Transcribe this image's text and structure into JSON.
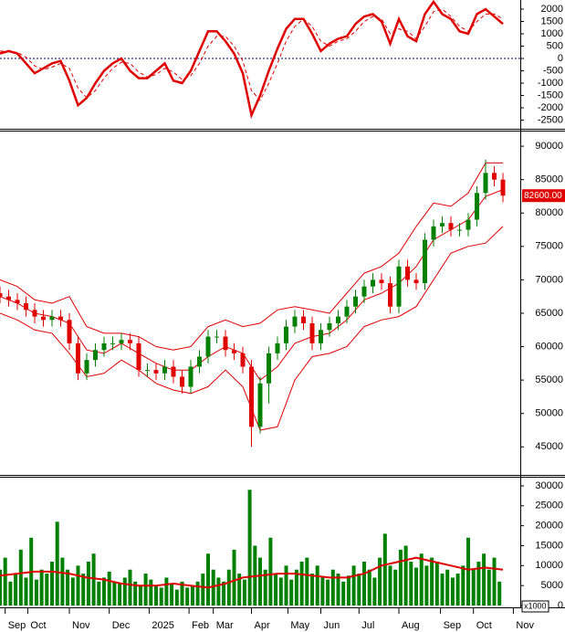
{
  "chart_data": [
    {
      "type": "line",
      "xlim": [
        0,
        300
      ],
      "ylim": [
        -2850,
        2370
      ],
      "yticks": [
        -2500,
        -2000,
        -1500,
        -1000,
        -500,
        0,
        500,
        1000,
        1500,
        2000
      ],
      "reference_line": {
        "value": 0,
        "color": "#000080"
      },
      "x": [
        0,
        5,
        10,
        15,
        20,
        25,
        30,
        35,
        40,
        45,
        50,
        55,
        60,
        65,
        70,
        75,
        80,
        85,
        90,
        95,
        100,
        105,
        110,
        115,
        120,
        125,
        130,
        135,
        140,
        145,
        150,
        155,
        160,
        165,
        170,
        175,
        180,
        185,
        190,
        195,
        200,
        205,
        210,
        215,
        220,
        225,
        230,
        235,
        240,
        245,
        250,
        255,
        260,
        265,
        270,
        275,
        280,
        285,
        290
      ],
      "series": [
        {
          "color": "#e00000",
          "dash": false,
          "values": [
            200,
            300,
            200,
            -200,
            -600,
            -400,
            -200,
            -100,
            -900,
            -1900,
            -1600,
            -1000,
            -500,
            -200,
            0,
            -500,
            -800,
            -800,
            -500,
            -200,
            -900,
            -1000,
            -500,
            300,
            1100,
            1100,
            700,
            200,
            -600,
            -2300,
            -1500,
            -500,
            400,
            1200,
            1600,
            1600,
            1000,
            300,
            600,
            800,
            900,
            1400,
            1700,
            1800,
            1500,
            600,
            1600,
            900,
            700,
            1800,
            2300,
            1800,
            1600,
            1100,
            1000,
            1800,
            2000,
            1700,
            1400
          ]
        },
        {
          "color": "#e00000",
          "dash": true,
          "values": [
            300,
            280,
            250,
            50,
            -300,
            -450,
            -350,
            -200,
            -400,
            -1200,
            -1600,
            -1300,
            -800,
            -400,
            -150,
            -200,
            -550,
            -750,
            -650,
            -400,
            -550,
            -850,
            -700,
            -200,
            500,
            900,
            900,
            500,
            -100,
            -1300,
            -1700,
            -1000,
            -200,
            700,
            1300,
            1600,
            1300,
            700,
            500,
            700,
            800,
            1100,
            1500,
            1700,
            1600,
            1000,
            1200,
            1100,
            800,
            1300,
            1900,
            2000,
            1700,
            1300,
            1100,
            1500,
            1800,
            1800,
            1600
          ]
        }
      ]
    },
    {
      "type": "candlestick",
      "xlim": [
        0,
        300
      ],
      "ylim": [
        40800,
        92200
      ],
      "yticks": [
        45000,
        50000,
        55000,
        60000,
        65000,
        70000,
        75000,
        80000,
        85000,
        90000
      ],
      "up_color": "#008000",
      "down_color": "#e00000",
      "x": [
        0,
        5,
        10,
        15,
        20,
        25,
        30,
        35,
        40,
        45,
        50,
        55,
        60,
        65,
        70,
        75,
        80,
        85,
        90,
        95,
        100,
        105,
        110,
        115,
        120,
        125,
        130,
        135,
        140,
        145,
        150,
        155,
        160,
        165,
        170,
        175,
        180,
        185,
        190,
        195,
        200,
        205,
        210,
        215,
        220,
        225,
        230,
        235,
        240,
        245,
        250,
        255,
        260,
        265,
        270,
        275,
        280,
        285,
        290
      ],
      "open": [
        68000,
        67500,
        67000,
        66500,
        65500,
        64500,
        64000,
        64500,
        64000,
        60500,
        56000,
        58000,
        59500,
        60500,
        60500,
        61000,
        60500,
        56500,
        56500,
        56000,
        57000,
        55500,
        54000,
        57000,
        58500,
        61500,
        61500,
        59500,
        59000,
        57000,
        48000,
        54500,
        59000,
        60500,
        63000,
        64500,
        63500,
        60500,
        62500,
        63500,
        64500,
        66000,
        67500,
        69000,
        70000,
        69500,
        66000,
        72000,
        70000,
        69500,
        76000,
        78000,
        78500,
        77500,
        77500,
        79000,
        83000,
        86000,
        85000
      ],
      "high": [
        69000,
        68500,
        68000,
        67500,
        66500,
        65500,
        65500,
        65500,
        65000,
        61500,
        59000,
        60500,
        61500,
        61500,
        62000,
        62000,
        61500,
        57500,
        57500,
        58000,
        58000,
        56500,
        58000,
        59500,
        62500,
        62500,
        62500,
        60500,
        60000,
        58000,
        55500,
        60000,
        61500,
        64000,
        65500,
        65500,
        64500,
        63500,
        64500,
        65500,
        67000,
        68500,
        70000,
        71000,
        71000,
        70500,
        73000,
        73000,
        71000,
        77000,
        79000,
        79500,
        79500,
        78500,
        80000,
        84000,
        88000,
        87000,
        86000
      ],
      "low": [
        66500,
        66000,
        65500,
        64500,
        63500,
        63000,
        63000,
        63000,
        59500,
        55000,
        55000,
        57000,
        58500,
        59500,
        59500,
        59500,
        55500,
        55500,
        55000,
        55000,
        54500,
        53000,
        53000,
        56000,
        57500,
        60500,
        58500,
        58000,
        56000,
        45000,
        47000,
        51500,
        58000,
        59500,
        62000,
        62500,
        59500,
        59500,
        61500,
        62500,
        63500,
        65000,
        66500,
        68000,
        68500,
        65000,
        65000,
        69000,
        68500,
        68500,
        75000,
        77000,
        76500,
        76500,
        76500,
        78000,
        82000,
        84000,
        81600
      ],
      "close": [
        67500,
        67000,
        66500,
        65500,
        64500,
        64000,
        64500,
        64000,
        60500,
        56000,
        58000,
        59500,
        60500,
        60500,
        61000,
        60500,
        56500,
        56500,
        56000,
        57000,
        55500,
        54000,
        57000,
        58500,
        61500,
        61500,
        59500,
        59000,
        57000,
        48000,
        54500,
        59000,
        60500,
        63000,
        64500,
        63500,
        60500,
        62500,
        63500,
        64500,
        66000,
        67500,
        69000,
        70000,
        69500,
        66000,
        72000,
        70000,
        69500,
        76000,
        78000,
        78500,
        77500,
        77500,
        79000,
        83000,
        86000,
        85000,
        82600
      ],
      "bands_x": [
        0,
        10,
        20,
        30,
        40,
        50,
        60,
        70,
        80,
        90,
        100,
        110,
        120,
        130,
        140,
        150,
        160,
        170,
        180,
        190,
        200,
        210,
        220,
        230,
        240,
        250,
        260,
        270,
        280,
        290
      ],
      "bands": [
        {
          "color": "#e00000",
          "values": [
            70000,
            69000,
            67000,
            66500,
            67500,
            63000,
            62000,
            62000,
            61500,
            60000,
            59500,
            60000,
            63000,
            64000,
            63000,
            63500,
            65500,
            66000,
            65500,
            65000,
            68000,
            71000,
            72000,
            74000,
            78000,
            81500,
            81000,
            83000,
            87500,
            87500
          ]
        },
        {
          "color": "#e00000",
          "values": [
            67500,
            66500,
            65000,
            64500,
            63500,
            59500,
            59000,
            60500,
            59000,
            57500,
            56500,
            56500,
            58500,
            60000,
            59000,
            55000,
            57000,
            60500,
            61500,
            62000,
            64000,
            67000,
            68000,
            69500,
            72000,
            76000,
            77500,
            79000,
            82500,
            83500
          ]
        },
        {
          "color": "#e00000",
          "values": [
            65000,
            64000,
            62500,
            62000,
            59000,
            55500,
            56000,
            58000,
            56500,
            54500,
            53500,
            53000,
            54000,
            56500,
            54000,
            47500,
            48000,
            55000,
            58500,
            59000,
            60000,
            63000,
            64000,
            64500,
            66000,
            70000,
            74000,
            75000,
            75500,
            78000
          ]
        }
      ],
      "last_price": {
        "value": 82600,
        "label": "82600.00",
        "color": "#e00000"
      }
    },
    {
      "type": "bar",
      "xlim": [
        0,
        300
      ],
      "ylim": [
        -450,
        32050
      ],
      "yticks": [
        0,
        5000,
        10000,
        15000,
        20000,
        25000,
        30000
      ],
      "unit_label": "x1000",
      "color": "#008000",
      "x": [
        0,
        3,
        6,
        9,
        12,
        15,
        18,
        21,
        24,
        27,
        30,
        33,
        36,
        39,
        42,
        45,
        48,
        51,
        54,
        57,
        60,
        63,
        66,
        69,
        72,
        75,
        78,
        81,
        84,
        87,
        90,
        93,
        96,
        99,
        102,
        105,
        108,
        111,
        114,
        117,
        120,
        123,
        126,
        129,
        132,
        135,
        138,
        141,
        144,
        147,
        150,
        153,
        156,
        159,
        162,
        165,
        168,
        171,
        174,
        177,
        180,
        183,
        186,
        189,
        192,
        195,
        198,
        201,
        204,
        207,
        210,
        213,
        216,
        219,
        222,
        225,
        228,
        231,
        234,
        237,
        240,
        243,
        246,
        249,
        252,
        255,
        258,
        261,
        264,
        267,
        270,
        273,
        276,
        279,
        282,
        285,
        288
      ],
      "values": [
        9000,
        12000,
        6000,
        8000,
        14000,
        7000,
        17000,
        6500,
        9000,
        8000,
        11000,
        21000,
        12000,
        9000,
        7000,
        10000,
        8000,
        11000,
        13000,
        6000,
        7000,
        8500,
        6000,
        5500,
        7000,
        9000,
        6000,
        5000,
        8000,
        6500,
        5000,
        4500,
        7000,
        5500,
        4000,
        6000,
        4500,
        5000,
        6000,
        8000,
        13000,
        9000,
        7000,
        6000,
        9000,
        14000,
        8000,
        6500,
        29000,
        15000,
        12000,
        9000,
        17000,
        8000,
        7000,
        10000,
        6500,
        9000,
        11000,
        12000,
        8000,
        10000,
        7000,
        6500,
        9000,
        8000,
        6000,
        7500,
        10000,
        8000,
        11000,
        9000,
        7000,
        12000,
        18000,
        10000,
        9000,
        14000,
        15000,
        11000,
        9500,
        13000,
        10000,
        12000,
        11000,
        8000,
        9000,
        7000,
        8000,
        10000,
        17000,
        9000,
        11000,
        13000,
        9000,
        12000,
        6000
      ],
      "ma": {
        "color": "#e00000",
        "x": [
          0,
          10,
          20,
          30,
          40,
          50,
          60,
          70,
          80,
          90,
          100,
          110,
          120,
          130,
          140,
          150,
          160,
          170,
          180,
          190,
          200,
          210,
          220,
          230,
          240,
          250,
          260,
          270,
          280,
          290
        ],
        "values": [
          7500,
          8000,
          8500,
          8500,
          8000,
          7000,
          6500,
          5500,
          5000,
          5000,
          5500,
          5000,
          4500,
          5500,
          7000,
          7500,
          8000,
          8000,
          7500,
          7000,
          7000,
          8000,
          10000,
          11000,
          12000,
          11000,
          10000,
          9000,
          9500,
          9000
        ]
      },
      "xticks": [
        {
          "value": 3,
          "label": "Sep"
        },
        {
          "value": 16,
          "label": "Oct"
        },
        {
          "value": 40,
          "label": "Nov"
        },
        {
          "value": 63,
          "label": "Dec"
        },
        {
          "value": 86,
          "label": "2025"
        },
        {
          "value": 109,
          "label": "Feb"
        },
        {
          "value": 123,
          "label": "Mar"
        },
        {
          "value": 145,
          "label": "Apr"
        },
        {
          "value": 166,
          "label": "May"
        },
        {
          "value": 185,
          "label": "Jun"
        },
        {
          "value": 207,
          "label": "Jul"
        },
        {
          "value": 230,
          "label": "Aug"
        },
        {
          "value": 254,
          "label": "Sep"
        },
        {
          "value": 273,
          "label": "Oct"
        },
        {
          "value": 296,
          "label": "Nov"
        }
      ]
    }
  ]
}
